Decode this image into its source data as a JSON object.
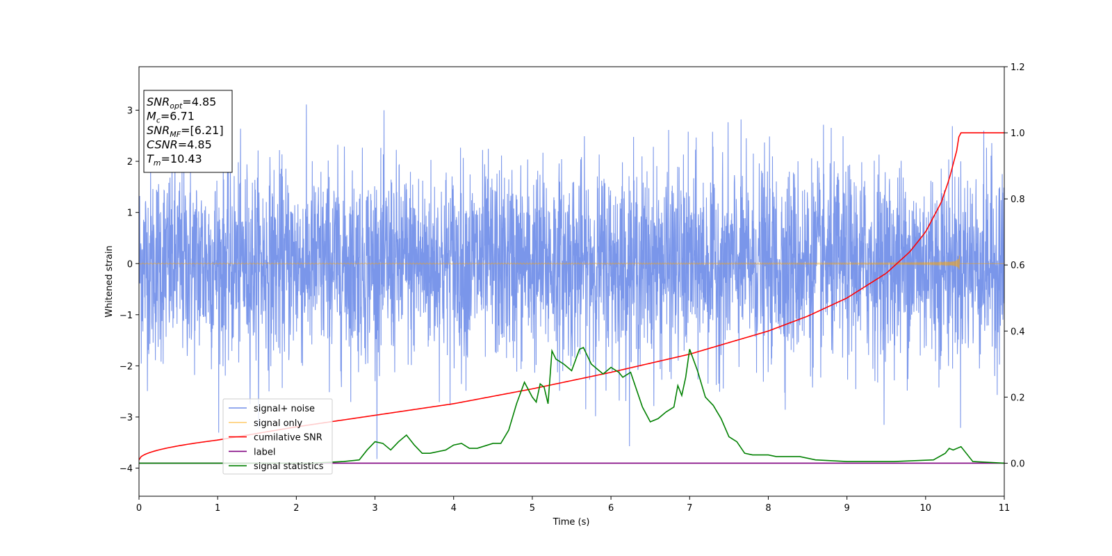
{
  "chart_data": {
    "type": "line",
    "xlabel": "Time (s)",
    "ylabel": "Whitened strain",
    "xlim": [
      0,
      11
    ],
    "ylim": [
      -4.55,
      3.85
    ],
    "y2lim": [
      -0.1,
      1.2
    ],
    "x_ticks": [
      0,
      1,
      2,
      3,
      4,
      5,
      6,
      7,
      8,
      9,
      10,
      11
    ],
    "y_ticks": [
      -4,
      -3,
      -2,
      -1,
      0,
      1,
      2,
      3
    ],
    "y2_ticks": [
      0.0,
      0.2,
      0.4,
      0.6,
      0.8,
      1.0,
      1.2
    ],
    "grid": false,
    "legend_position": "lower-left",
    "annotation": [
      {
        "base": "SNR",
        "sub": "opt",
        "value": "=4.85"
      },
      {
        "base": "M",
        "sub": "c",
        "value": "=6.71"
      },
      {
        "base": "SNR",
        "sub": "MF",
        "value": "=[6.21]"
      },
      {
        "base": "CSNR",
        "sub": "",
        "value": "=4.85"
      },
      {
        "base": "T",
        "sub": "m",
        "value": "=10.43"
      }
    ],
    "series": [
      {
        "name": "signal+ noise",
        "color": "#4169E1",
        "axis": "left",
        "kind": "noise",
        "noise_amplitude_sigma": 1.0,
        "noise_range": [
          -4.2,
          3.45
        ]
      },
      {
        "name": "signal only",
        "color": "#FFA500",
        "axis": "left",
        "kind": "chirp",
        "merger_time": 10.43,
        "peak_amplitude": 0.62,
        "min_amplitude": -0.42
      },
      {
        "name": "cumilative SNR",
        "color": "#FF0000",
        "axis": "right",
        "x": [
          0,
          0.5,
          1,
          2,
          3,
          4,
          5,
          6,
          7,
          8,
          8.5,
          9,
          9.5,
          9.8,
          10.0,
          10.2,
          10.3,
          10.4,
          10.43,
          11
        ],
        "y": [
          0.01,
          0.05,
          0.07,
          0.11,
          0.145,
          0.18,
          0.225,
          0.275,
          0.33,
          0.4,
          0.445,
          0.5,
          0.575,
          0.64,
          0.7,
          0.79,
          0.86,
          0.95,
          1.0,
          1.0
        ]
      },
      {
        "name": "label",
        "color": "#800080",
        "axis": "right",
        "x": [
          0,
          11
        ],
        "y": [
          0.0,
          0.0
        ]
      },
      {
        "name": "signal statistics",
        "color": "#008000",
        "axis": "right",
        "x": [
          0,
          2.2,
          2.6,
          2.8,
          2.9,
          3.0,
          3.1,
          3.2,
          3.3,
          3.4,
          3.5,
          3.6,
          3.7,
          3.9,
          4.0,
          4.1,
          4.2,
          4.3,
          4.5,
          4.6,
          4.7,
          4.8,
          4.9,
          5.0,
          5.05,
          5.1,
          5.15,
          5.2,
          5.25,
          5.3,
          5.4,
          5.5,
          5.6,
          5.65,
          5.75,
          5.9,
          6.0,
          6.1,
          6.15,
          6.25,
          6.3,
          6.4,
          6.5,
          6.6,
          6.7,
          6.8,
          6.85,
          6.9,
          6.95,
          7.0,
          7.1,
          7.2,
          7.3,
          7.4,
          7.5,
          7.6,
          7.7,
          7.8,
          8.0,
          8.1,
          8.4,
          8.6,
          9.0,
          9.6,
          10.1,
          10.25,
          10.3,
          10.35,
          10.45,
          10.6,
          11
        ],
        "y": [
          0.0,
          0.0,
          0.005,
          0.01,
          0.04,
          0.065,
          0.06,
          0.04,
          0.065,
          0.085,
          0.055,
          0.03,
          0.03,
          0.04,
          0.055,
          0.06,
          0.045,
          0.045,
          0.06,
          0.06,
          0.1,
          0.18,
          0.245,
          0.2,
          0.185,
          0.24,
          0.23,
          0.18,
          0.34,
          0.315,
          0.3,
          0.28,
          0.345,
          0.35,
          0.3,
          0.27,
          0.29,
          0.275,
          0.26,
          0.275,
          0.24,
          0.17,
          0.125,
          0.135,
          0.155,
          0.17,
          0.235,
          0.205,
          0.26,
          0.345,
          0.28,
          0.2,
          0.175,
          0.135,
          0.08,
          0.065,
          0.03,
          0.025,
          0.025,
          0.02,
          0.02,
          0.01,
          0.005,
          0.005,
          0.01,
          0.03,
          0.045,
          0.04,
          0.05,
          0.005,
          0.0
        ]
      }
    ]
  }
}
